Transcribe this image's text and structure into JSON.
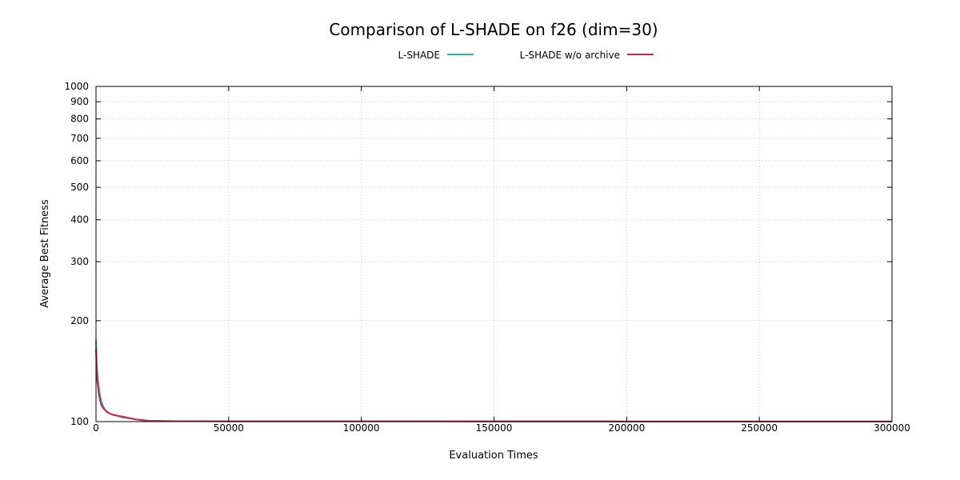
{
  "chart_data": {
    "type": "line",
    "title": "Comparison of L-SHADE on f26 (dim=30)",
    "xlabel": "Evaluation Times",
    "ylabel": "Average Best Fitness",
    "xlim": [
      0,
      300000
    ],
    "ylim": [
      100,
      1000
    ],
    "yscale": "log",
    "grid": true,
    "legend_position": "top-center",
    "xticks": [
      0,
      50000,
      100000,
      150000,
      200000,
      250000,
      300000
    ],
    "xtick_labels": [
      "0",
      "50000",
      "100000",
      "150000",
      "200000",
      "250000",
      "300000"
    ],
    "yticks": [
      100,
      200,
      300,
      400,
      500,
      600,
      700,
      800,
      900,
      1000
    ],
    "ytick_labels": [
      "100",
      "200",
      "300",
      "400",
      "500",
      "600",
      "700",
      "800",
      "900",
      "1000"
    ],
    "series": [
      {
        "name": "L-SHADE",
        "color": "#2ab3a3",
        "x": [
          0,
          200,
          500,
          1000,
          1500,
          2000,
          3000,
          4000,
          6000,
          10000,
          15000,
          20000,
          30000,
          50000,
          100000,
          200000,
          300000
        ],
        "y": [
          175,
          155,
          140,
          128,
          120,
          115,
          110,
          107,
          105,
          103,
          101.5,
          100.6,
          100.3,
          100.2,
          100.2,
          100.1,
          100.1
        ]
      },
      {
        "name": "L-SHADE w/o archive",
        "color": "#c8284a",
        "x": [
          0,
          200,
          500,
          1000,
          1500,
          2000,
          3000,
          4000,
          6000,
          10000,
          15000,
          20000,
          30000,
          50000,
          100000,
          200000,
          300000
        ],
        "y": [
          165,
          148,
          132,
          122,
          116,
          112,
          109,
          107,
          105,
          103.5,
          101.5,
          100.5,
          100.3,
          100.2,
          100.2,
          100.1,
          100.1
        ]
      }
    ]
  }
}
